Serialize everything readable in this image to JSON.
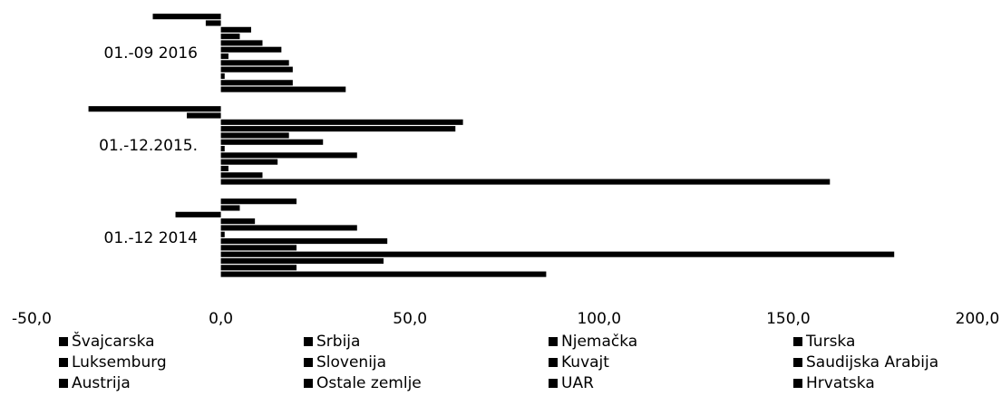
{
  "chart_data": {
    "type": "bar",
    "orientation": "horizontal",
    "categories": [
      "01.-12 2014",
      "01.-12.2015.",
      "01.-09 2016"
    ],
    "xlim": [
      -50,
      200
    ],
    "xticks": [
      {
        "value": -50,
        "label": "-50,0"
      },
      {
        "value": 0,
        "label": "0,0"
      },
      {
        "value": 50,
        "label": "50,0"
      },
      {
        "value": 100,
        "label": "100,0"
      },
      {
        "value": 150,
        "label": "150,0"
      },
      {
        "value": 200,
        "label": "200,0"
      }
    ],
    "grid": false,
    "legend": "bottom",
    "series": [
      {
        "name": "Švajcarska",
        "color": "#000000",
        "values": [
          86,
          161,
          33
        ]
      },
      {
        "name": "Srbija",
        "color": "#000000",
        "values": [
          20,
          11,
          19
        ]
      },
      {
        "name": "Njemačka",
        "color": "#000000",
        "values": [
          43,
          2,
          1
        ]
      },
      {
        "name": "Turska",
        "color": "#000000",
        "values": [
          178,
          15,
          19
        ]
      },
      {
        "name": "Luksemburg",
        "color": "#000000",
        "values": [
          20,
          36,
          18
        ]
      },
      {
        "name": "Slovenija",
        "color": "#000000",
        "values": [
          44,
          1,
          2
        ]
      },
      {
        "name": "Kuvajt",
        "color": "#000000",
        "values": [
          1,
          27,
          16
        ]
      },
      {
        "name": "Saudijska Arabija",
        "color": "#000000",
        "values": [
          36,
          18,
          11
        ]
      },
      {
        "name": "Austrija",
        "color": "#000000",
        "values": [
          9,
          62,
          5
        ]
      },
      {
        "name": "Ostale zemlje",
        "color": "#000000",
        "values": [
          -12,
          64,
          8
        ]
      },
      {
        "name": "UAR",
        "color": "#000000",
        "values": [
          5,
          -9,
          -4
        ]
      },
      {
        "name": "Hrvatska",
        "color": "#000000",
        "values": [
          20,
          -35,
          -18
        ]
      }
    ]
  }
}
